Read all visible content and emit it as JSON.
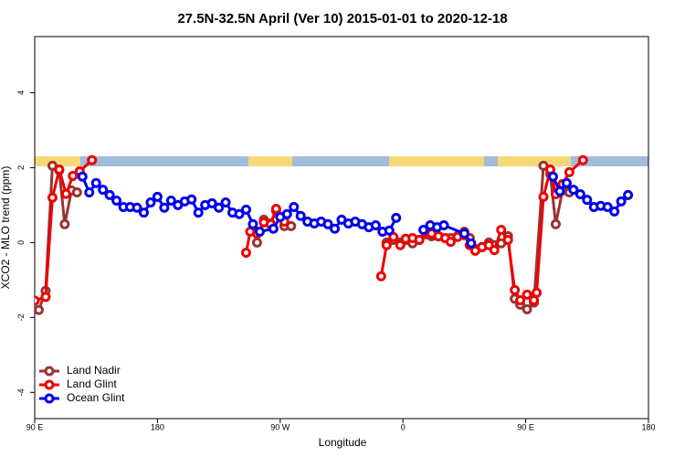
{
  "chart_data": {
    "type": "line",
    "title": "27.5N-32.5N April (Ver 10)   2015-01-01 to 2020-12-18",
    "x_label": "Longitude",
    "y_label": "XCO2 - MLO trend (ppm)",
    "xlim": [
      90,
      540
    ],
    "ylim": [
      -4.7,
      5.5
    ],
    "xticks": [
      {
        "value": 90,
        "label": "90 E"
      },
      {
        "value": 180,
        "label": "180"
      },
      {
        "value": 270,
        "label": "90 W"
      },
      {
        "value": 360,
        "label": "0"
      },
      {
        "value": 450,
        "label": "90 E"
      },
      {
        "value": 540,
        "label": "180"
      }
    ],
    "yticks": [
      -4,
      -2,
      0,
      2,
      4
    ],
    "legend": "bottom-left",
    "series": [
      {
        "name": "Land Nadir",
        "color": "#993333",
        "x": [
          93,
          98,
          103,
          108,
          112,
          117,
          121,
          200,
          253,
          258,
          263,
          267,
          273,
          278,
          300,
          348,
          353,
          358,
          362,
          367,
          372,
          377,
          381,
          386,
          391,
          395,
          400,
          405,
          409,
          413,
          418,
          423,
          427,
          432,
          437,
          442,
          446,
          451,
          456,
          463,
          468,
          472,
          477,
          482
        ],
        "values": [
          -1.8,
          -1.29,
          2.05,
          1.93,
          0.49,
          1.39,
          1.34,
          null,
          0.0,
          0.61,
          0.51,
          0.85,
          0.44,
          0.44,
          null,
          0.0,
          0.07,
          0.0,
          0.07,
          -0.02,
          0.07,
          0.22,
          0.17,
          0.17,
          0.12,
          0.12,
          0.17,
          0.29,
          0.12,
          -0.17,
          -0.12,
          0.0,
          -0.07,
          -0.02,
          0.17,
          -1.5,
          -1.66,
          -1.78,
          -1.6,
          2.05,
          1.83,
          0.49,
          1.39,
          1.34
        ]
      },
      {
        "name": "Land Glint",
        "color": "#ee0000",
        "x": [
          90,
          98,
          103,
          108,
          113,
          118,
          123,
          132,
          200,
          245,
          248,
          253,
          258,
          263,
          267,
          273,
          300,
          344,
          348,
          353,
          358,
          362,
          367,
          372,
          377,
          381,
          386,
          391,
          395,
          400,
          405,
          409,
          413,
          418,
          423,
          427,
          432,
          437,
          442,
          446,
          451,
          456,
          458,
          463,
          468,
          472,
          477,
          482,
          492
        ],
        "values": [
          -1.55,
          -1.45,
          1.2,
          1.95,
          1.3,
          1.78,
          1.9,
          2.2,
          null,
          -0.27,
          0.29,
          0.24,
          0.54,
          0.49,
          0.9,
          0.56,
          null,
          -0.9,
          -0.07,
          0.15,
          -0.07,
          0.1,
          0.12,
          0.07,
          0.29,
          0.24,
          0.17,
          0.12,
          0.02,
          0.15,
          0.2,
          -0.07,
          -0.22,
          -0.12,
          -0.07,
          -0.2,
          0.34,
          0.07,
          -1.27,
          -1.54,
          -1.39,
          -1.54,
          -1.34,
          1.22,
          1.95,
          1.29,
          1.56,
          1.88,
          2.2
        ]
      },
      {
        "name": "Ocean Glint",
        "color": "#0000ee",
        "x": [
          125,
          130,
          135,
          140,
          145,
          150,
          155,
          160,
          165,
          170,
          175,
          180,
          185,
          190,
          195,
          200,
          205,
          210,
          215,
          220,
          225,
          230,
          235,
          240,
          245,
          250,
          255,
          265,
          270,
          275,
          280,
          285,
          290,
          295,
          300,
          305,
          310,
          315,
          320,
          325,
          330,
          335,
          340,
          345,
          350,
          355,
          365,
          375,
          380,
          385,
          390,
          405,
          410,
          440,
          470,
          475,
          480,
          485,
          490,
          495,
          500,
          505,
          510,
          515,
          520,
          525
        ],
        "values": [
          1.76,
          1.34,
          1.59,
          1.41,
          1.27,
          1.12,
          0.95,
          0.95,
          0.93,
          0.8,
          1.07,
          1.22,
          0.93,
          1.12,
          1.0,
          1.1,
          1.15,
          0.8,
          1.0,
          1.05,
          0.93,
          1.07,
          0.8,
          0.76,
          0.88,
          0.49,
          0.29,
          0.37,
          0.68,
          0.76,
          0.95,
          0.71,
          0.56,
          0.51,
          0.56,
          0.49,
          0.37,
          0.61,
          0.51,
          0.56,
          0.49,
          0.41,
          0.46,
          0.29,
          0.32,
          0.66,
          null,
          0.34,
          0.46,
          0.41,
          0.46,
          0.24,
          -0.02,
          null,
          1.76,
          1.37,
          1.59,
          1.41,
          1.29,
          1.14,
          0.95,
          0.98,
          0.95,
          0.83,
          1.1,
          1.27
        ]
      }
    ]
  }
}
